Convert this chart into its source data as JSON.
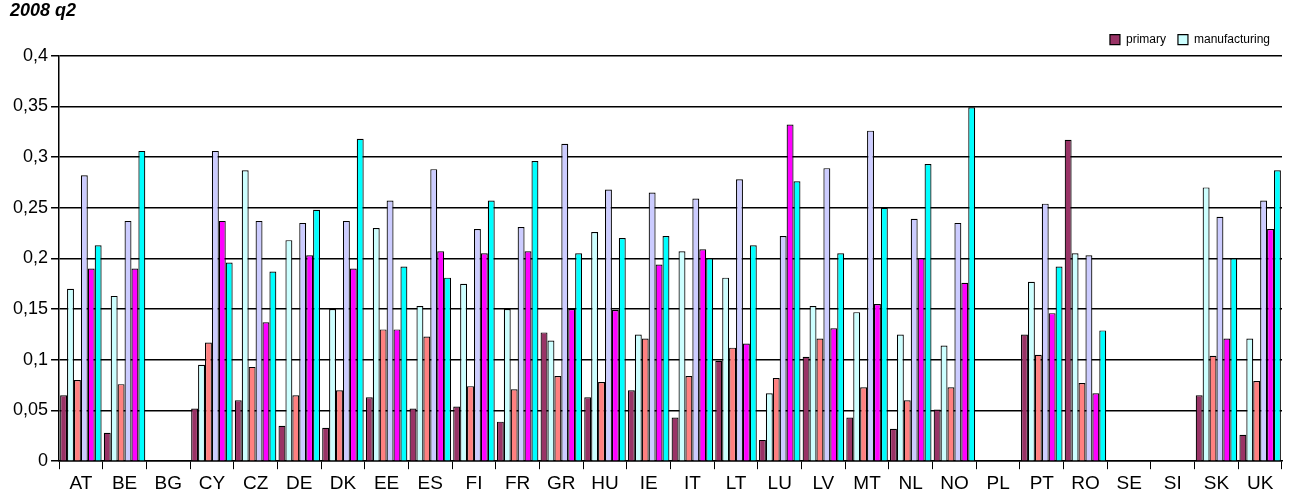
{
  "chart_data": {
    "type": "bar",
    "title": "2008 q2",
    "categories": [
      "AT",
      "BE",
      "BG",
      "CY",
      "CZ",
      "DE",
      "DK",
      "EE",
      "ES",
      "FI",
      "FR",
      "GR",
      "HU",
      "IE",
      "IT",
      "LT",
      "LU",
      "LV",
      "MT",
      "NL",
      "NO",
      "PL",
      "PT",
      "RO",
      "SE",
      "SI",
      "SK",
      "UK"
    ],
    "series": [
      {
        "name": "primary",
        "color": "#993366",
        "values": [
          0.065,
          0.028,
          null,
          0.052,
          0.06,
          0.035,
          0.033,
          0.063,
          0.052,
          0.054,
          0.039,
          0.127,
          0.063,
          0.07,
          0.043,
          0.099,
          0.021,
          0.103,
          0.043,
          0.032,
          0.051,
          null,
          0.125,
          0.317,
          null,
          null,
          0.065,
          0.026
        ]
      },
      {
        "name": "manufacturing",
        "color": "#ccffff",
        "values": [
          0.17,
          0.163,
          null,
          0.095,
          0.287,
          0.218,
          0.15,
          0.23,
          0.153,
          0.175,
          0.15,
          0.119,
          0.226,
          0.125,
          0.207,
          0.181,
          0.067,
          0.153,
          0.147,
          0.125,
          0.114,
          null,
          0.177,
          0.205,
          null,
          null,
          0.27,
          0.121
        ]
      },
      {
        "color": "#ff8080",
        "values": [
          0.08,
          0.076,
          null,
          0.117,
          0.093,
          0.065,
          0.07,
          0.13,
          0.123,
          0.074,
          0.071,
          0.084,
          0.078,
          0.121,
          0.084,
          0.112,
          0.082,
          0.121,
          0.073,
          0.06,
          0.073,
          null,
          0.105,
          0.077,
          null,
          null,
          0.104,
          0.079
        ]
      },
      {
        "color": "#ccccff",
        "values": [
          0.282,
          0.237,
          null,
          0.306,
          0.237,
          0.235,
          0.237,
          0.257,
          0.288,
          0.229,
          0.231,
          0.313,
          0.268,
          0.265,
          0.259,
          0.278,
          0.222,
          0.289,
          0.326,
          0.239,
          0.235,
          null,
          0.254,
          0.203,
          null,
          null,
          0.241,
          0.257
        ]
      },
      {
        "color": "#ff00ff",
        "values": [
          0.19,
          0.19,
          null,
          0.237,
          0.137,
          0.203,
          0.19,
          0.13,
          0.207,
          0.205,
          0.207,
          0.15,
          0.149,
          0.194,
          0.209,
          0.116,
          0.332,
          0.131,
          0.155,
          0.2,
          0.176,
          null,
          0.146,
          0.067,
          null,
          null,
          0.121,
          0.229
        ]
      },
      {
        "color": "#00ffff",
        "values": [
          0.213,
          0.306,
          null,
          0.196,
          0.187,
          0.248,
          0.318,
          0.192,
          0.181,
          0.257,
          0.296,
          0.205,
          0.22,
          0.222,
          0.2,
          0.213,
          0.276,
          0.205,
          0.25,
          0.293,
          0.349,
          null,
          0.192,
          0.129,
          null,
          null,
          0.2,
          0.287
        ]
      }
    ],
    "ylim": [
      0,
      0.4
    ],
    "yticks": [
      {
        "value": 0,
        "label": "0"
      },
      {
        "value": 0.05,
        "label": "0,05"
      },
      {
        "value": 0.1,
        "label": "0,1"
      },
      {
        "value": 0.15,
        "label": "0,15"
      },
      {
        "value": 0.2,
        "label": "0,2"
      },
      {
        "value": 0.25,
        "label": "0,25"
      },
      {
        "value": 0.3,
        "label": "0,3"
      },
      {
        "value": 0.35,
        "label": "0,35"
      },
      {
        "value": 0.4,
        "label": "0,4"
      }
    ],
    "grid": "y",
    "legend": "top right"
  }
}
